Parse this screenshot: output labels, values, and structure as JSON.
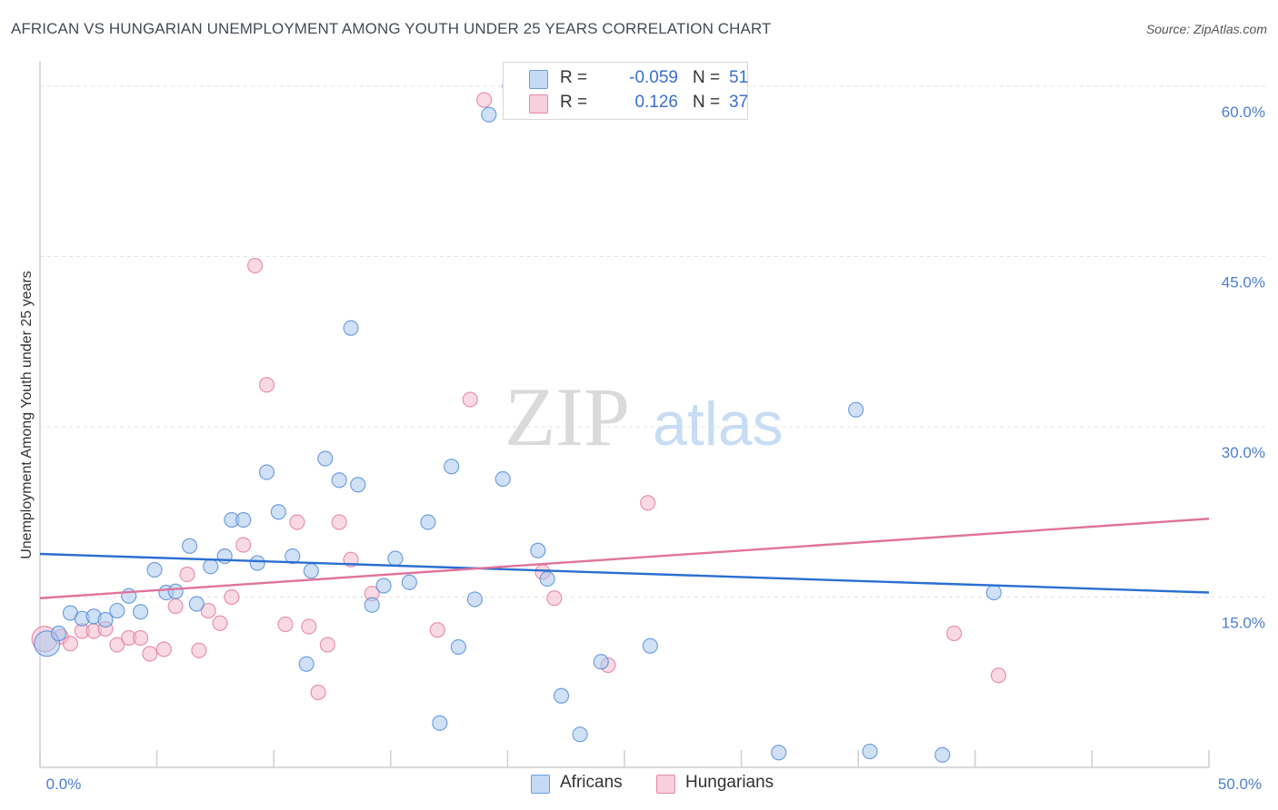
{
  "chart_data": {
    "type": "scatter",
    "title": "AFRICAN VS HUNGARIAN UNEMPLOYMENT AMONG YOUTH UNDER 25 YEARS CORRELATION CHART",
    "source": "Source: ZipAtlas.com",
    "ylabel": "Unemployment Among Youth under 25 years",
    "xlim": [
      0,
      50
    ],
    "ylim": [
      0,
      62
    ],
    "y_ticks": [
      {
        "value": 15,
        "label": "15.0%"
      },
      {
        "value": 30,
        "label": "30.0%"
      },
      {
        "value": 45,
        "label": "45.0%"
      },
      {
        "value": 60,
        "label": "60.0%"
      }
    ],
    "x_tick_labels": {
      "min": "0.0%",
      "max": "50.0%"
    },
    "watermark": {
      "zip": "ZIP",
      "atlas": "atlas"
    },
    "legend": [
      {
        "series": "Africans",
        "r_label": "R =",
        "r_value": "-0.059",
        "n_label": "N =",
        "n_value": "51"
      },
      {
        "series": "Hungarians",
        "r_label": "R =",
        "r_value": "0.126",
        "n_label": "N =",
        "n_value": "37"
      }
    ],
    "series": [
      {
        "name": "Africans",
        "color": "#4a86d8",
        "fill": "#aac8ef",
        "trend": {
          "x": [
            0,
            50
          ],
          "y": [
            18.8,
            15.4
          ]
        },
        "points": [
          [
            0.3,
            10.9
          ],
          [
            0.8,
            11.8
          ],
          [
            1.3,
            13.6
          ],
          [
            1.8,
            13.1
          ],
          [
            2.3,
            13.3
          ],
          [
            2.8,
            13.0
          ],
          [
            3.3,
            13.8
          ],
          [
            3.8,
            15.1
          ],
          [
            4.3,
            13.7
          ],
          [
            4.9,
            17.4
          ],
          [
            5.4,
            15.4
          ],
          [
            5.8,
            15.5
          ],
          [
            6.4,
            19.5
          ],
          [
            6.7,
            14.4
          ],
          [
            7.3,
            17.7
          ],
          [
            7.9,
            18.6
          ],
          [
            8.2,
            21.8
          ],
          [
            8.7,
            21.8
          ],
          [
            9.3,
            18.0
          ],
          [
            9.7,
            26.0
          ],
          [
            10.2,
            22.5
          ],
          [
            10.8,
            18.6
          ],
          [
            11.4,
            9.1
          ],
          [
            11.6,
            17.3
          ],
          [
            12.2,
            27.2
          ],
          [
            12.8,
            25.3
          ],
          [
            13.3,
            38.7
          ],
          [
            13.6,
            24.9
          ],
          [
            14.2,
            14.3
          ],
          [
            14.7,
            16.0
          ],
          [
            15.2,
            18.4
          ],
          [
            15.8,
            16.3
          ],
          [
            16.6,
            21.6
          ],
          [
            17.1,
            3.9
          ],
          [
            17.6,
            26.5
          ],
          [
            17.9,
            10.6
          ],
          [
            18.6,
            14.8
          ],
          [
            19.2,
            57.5
          ],
          [
            19.8,
            25.4
          ],
          [
            20.1,
            60.0
          ],
          [
            21.3,
            19.1
          ],
          [
            21.7,
            16.6
          ],
          [
            22.3,
            6.3
          ],
          [
            23.1,
            2.9
          ],
          [
            24.0,
            9.3
          ],
          [
            26.1,
            10.7
          ],
          [
            31.6,
            1.3
          ],
          [
            34.9,
            31.5
          ],
          [
            35.5,
            1.4
          ],
          [
            38.6,
            1.1
          ],
          [
            40.8,
            15.4
          ]
        ]
      },
      {
        "name": "Hungarians",
        "color": "#e0739c",
        "fill": "#f4b9cc",
        "trend": {
          "x": [
            0,
            50
          ],
          "y": [
            14.9,
            21.9
          ]
        },
        "points": [
          [
            0.2,
            11.3
          ],
          [
            0.9,
            11.5
          ],
          [
            1.3,
            10.9
          ],
          [
            1.8,
            12.0
          ],
          [
            2.3,
            12.0
          ],
          [
            2.8,
            12.2
          ],
          [
            3.3,
            10.8
          ],
          [
            3.8,
            11.4
          ],
          [
            4.3,
            11.4
          ],
          [
            4.7,
            10.0
          ],
          [
            5.3,
            10.4
          ],
          [
            5.8,
            14.2
          ],
          [
            6.3,
            17.0
          ],
          [
            6.8,
            10.3
          ],
          [
            7.2,
            13.8
          ],
          [
            7.7,
            12.7
          ],
          [
            8.2,
            15.0
          ],
          [
            8.7,
            19.6
          ],
          [
            9.2,
            44.2
          ],
          [
            9.7,
            33.7
          ],
          [
            10.5,
            12.6
          ],
          [
            11.0,
            21.6
          ],
          [
            11.5,
            12.4
          ],
          [
            11.9,
            6.6
          ],
          [
            12.3,
            10.8
          ],
          [
            12.8,
            21.6
          ],
          [
            13.3,
            18.3
          ],
          [
            14.2,
            15.3
          ],
          [
            17.0,
            12.1
          ],
          [
            18.4,
            32.4
          ],
          [
            19.0,
            58.8
          ],
          [
            21.5,
            17.2
          ],
          [
            22.0,
            14.9
          ],
          [
            24.3,
            9.0
          ],
          [
            26.0,
            23.3
          ],
          [
            39.1,
            11.8
          ],
          [
            41.0,
            8.1
          ]
        ]
      }
    ]
  }
}
